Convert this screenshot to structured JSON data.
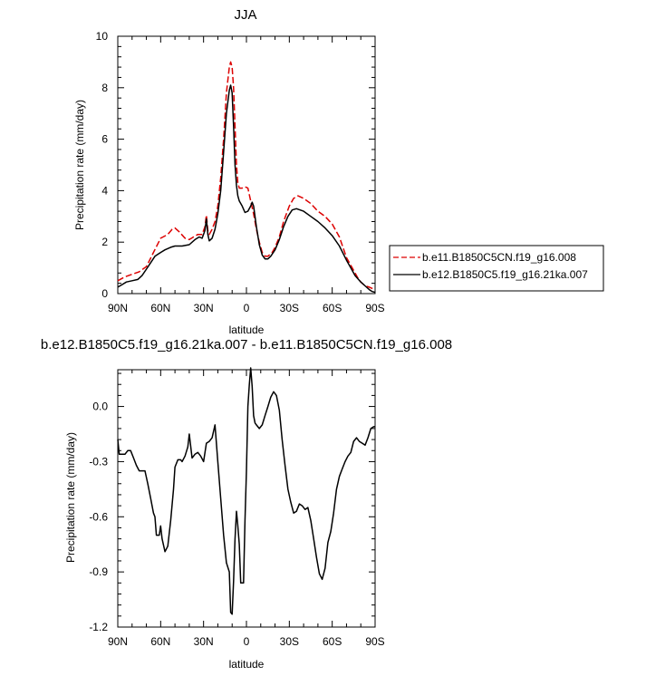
{
  "chart_data": [
    {
      "type": "line",
      "title": "JJA",
      "xlabel": "latitude",
      "ylabel": "Precipitation rate (mm/day)",
      "xlim": [
        90,
        -90
      ],
      "ylim": [
        0,
        10
      ],
      "xticks": [
        90,
        60,
        30,
        0,
        -30,
        -60,
        -90
      ],
      "xtick_labels": [
        "90N",
        "60N",
        "30N",
        "0",
        "30S",
        "60S",
        "90S"
      ],
      "yticks": [
        0,
        2,
        4,
        6,
        8,
        10
      ],
      "ytick_labels": [
        "0",
        "2",
        "4",
        "6",
        "8",
        "10"
      ],
      "legend_position": "right-middle",
      "series": [
        {
          "name": "b.e11.B1850C5CN.f19_g16.008",
          "color": "#dd0000",
          "dash": "dashed",
          "points": [
            [
              90,
              0.5
            ],
            [
              85,
              0.65
            ],
            [
              80,
              0.75
            ],
            [
              75,
              0.85
            ],
            [
              70,
              1.05
            ],
            [
              65,
              1.6
            ],
            [
              60,
              2.15
            ],
            [
              55,
              2.3
            ],
            [
              52,
              2.5
            ],
            [
              50,
              2.55
            ],
            [
              47,
              2.4
            ],
            [
              43,
              2.15
            ],
            [
              40,
              2.1
            ],
            [
              37,
              2.2
            ],
            [
              34,
              2.3
            ],
            [
              31,
              2.3
            ],
            [
              29,
              2.6
            ],
            [
              28,
              3.05
            ],
            [
              27,
              2.45
            ],
            [
              26,
              2.3
            ],
            [
              24,
              2.5
            ],
            [
              22,
              2.8
            ],
            [
              20,
              3.4
            ],
            [
              18,
              4.5
            ],
            [
              16,
              6.0
            ],
            [
              14,
              7.8
            ],
            [
              12,
              8.8
            ],
            [
              11,
              9.0
            ],
            [
              10,
              8.8
            ],
            [
              9,
              8.0
            ],
            [
              8,
              6.5
            ],
            [
              7,
              5.0
            ],
            [
              6,
              4.3
            ],
            [
              5,
              4.1
            ],
            [
              3,
              4.1
            ],
            [
              1,
              4.15
            ],
            [
              -1,
              4.1
            ],
            [
              -3,
              3.6
            ],
            [
              -5,
              3.1
            ],
            [
              -7,
              2.5
            ],
            [
              -9,
              2.0
            ],
            [
              -11,
              1.6
            ],
            [
              -13,
              1.45
            ],
            [
              -15,
              1.45
            ],
            [
              -18,
              1.6
            ],
            [
              -20,
              1.8
            ],
            [
              -23,
              2.2
            ],
            [
              -26,
              2.8
            ],
            [
              -30,
              3.4
            ],
            [
              -33,
              3.7
            ],
            [
              -36,
              3.8
            ],
            [
              -40,
              3.7
            ],
            [
              -45,
              3.5
            ],
            [
              -50,
              3.2
            ],
            [
              -55,
              3.0
            ],
            [
              -60,
              2.7
            ],
            [
              -65,
              2.2
            ],
            [
              -70,
              1.4
            ],
            [
              -75,
              0.9
            ],
            [
              -78,
              0.6
            ],
            [
              -80,
              0.45
            ],
            [
              -83,
              0.3
            ],
            [
              -86,
              0.25
            ],
            [
              -88,
              0.2
            ],
            [
              -90,
              0.15
            ]
          ]
        },
        {
          "name": "b.e12.B1850C5.f19_g16.21ka.007",
          "color": "#000000",
          "dash": "solid",
          "points": [
            [
              90,
              0.25
            ],
            [
              87,
              0.35
            ],
            [
              84,
              0.45
            ],
            [
              80,
              0.5
            ],
            [
              76,
              0.55
            ],
            [
              73,
              0.7
            ],
            [
              70,
              0.95
            ],
            [
              67,
              1.2
            ],
            [
              64,
              1.45
            ],
            [
              60,
              1.6
            ],
            [
              57,
              1.7
            ],
            [
              53,
              1.8
            ],
            [
              50,
              1.85
            ],
            [
              45,
              1.85
            ],
            [
              40,
              1.9
            ],
            [
              36,
              2.1
            ],
            [
              33,
              2.2
            ],
            [
              31,
              2.15
            ],
            [
              29,
              2.45
            ],
            [
              28,
              2.9
            ],
            [
              27,
              2.3
            ],
            [
              26,
              2.05
            ],
            [
              24,
              2.15
            ],
            [
              22,
              2.5
            ],
            [
              20,
              3.1
            ],
            [
              18,
              4.0
            ],
            [
              16,
              5.5
            ],
            [
              14,
              7.0
            ],
            [
              12,
              7.9
            ],
            [
              11,
              8.1
            ],
            [
              10,
              7.8
            ],
            [
              9,
              6.5
            ],
            [
              8,
              5.0
            ],
            [
              7,
              4.2
            ],
            [
              6,
              3.8
            ],
            [
              5,
              3.6
            ],
            [
              3,
              3.4
            ],
            [
              1,
              3.15
            ],
            [
              -1,
              3.2
            ],
            [
              -3,
              3.4
            ],
            [
              -4,
              3.55
            ],
            [
              -5,
              3.4
            ],
            [
              -7,
              2.6
            ],
            [
              -9,
              1.9
            ],
            [
              -11,
              1.5
            ],
            [
              -13,
              1.35
            ],
            [
              -15,
              1.35
            ],
            [
              -17,
              1.45
            ],
            [
              -20,
              1.7
            ],
            [
              -23,
              2.1
            ],
            [
              -26,
              2.6
            ],
            [
              -29,
              3.0
            ],
            [
              -32,
              3.25
            ],
            [
              -35,
              3.3
            ],
            [
              -40,
              3.2
            ],
            [
              -45,
              3.0
            ],
            [
              -50,
              2.8
            ],
            [
              -55,
              2.55
            ],
            [
              -60,
              2.25
            ],
            [
              -65,
              1.85
            ],
            [
              -70,
              1.3
            ],
            [
              -73,
              1.0
            ],
            [
              -76,
              0.7
            ],
            [
              -80,
              0.45
            ],
            [
              -83,
              0.3
            ],
            [
              -86,
              0.15
            ],
            [
              -88,
              0.08
            ],
            [
              -90,
              0.05
            ]
          ]
        }
      ]
    },
    {
      "type": "line",
      "title": "b.e12.B1850C5.f19_g16.21ka.007 - b.e11.B1850C5CN.f19_g16.008",
      "xlabel": "latitude",
      "ylabel": "Precipitation rate (mm/day)",
      "xlim": [
        90,
        -90
      ],
      "ylim": [
        -1.2,
        0.2
      ],
      "xticks": [
        90,
        60,
        30,
        0,
        -30,
        -60,
        -90
      ],
      "xtick_labels": [
        "90N",
        "60N",
        "30N",
        "0",
        "30S",
        "60S",
        "90S"
      ],
      "yticks": [
        0.0,
        -0.3,
        -0.6,
        -0.9,
        -1.2
      ],
      "ytick_labels": [
        "0.0",
        "-0.3",
        "-0.6",
        "-0.9",
        "-1.2"
      ],
      "series": [
        {
          "color": "#000000",
          "dash": "solid",
          "points": [
            [
              90,
              -0.18
            ],
            [
              89,
              -0.26
            ],
            [
              87,
              -0.26
            ],
            [
              85,
              -0.26
            ],
            [
              83,
              -0.24
            ],
            [
              81,
              -0.24
            ],
            [
              79,
              -0.28
            ],
            [
              77,
              -0.32
            ],
            [
              75,
              -0.35
            ],
            [
              73,
              -0.35
            ],
            [
              71,
              -0.35
            ],
            [
              69,
              -0.42
            ],
            [
              67,
              -0.5
            ],
            [
              65,
              -0.58
            ],
            [
              64,
              -0.6
            ],
            [
              63,
              -0.7
            ],
            [
              61,
              -0.7
            ],
            [
              60,
              -0.65
            ],
            [
              59,
              -0.72
            ],
            [
              57,
              -0.79
            ],
            [
              55,
              -0.76
            ],
            [
              53,
              -0.62
            ],
            [
              51,
              -0.45
            ],
            [
              50,
              -0.33
            ],
            [
              48,
              -0.29
            ],
            [
              46,
              -0.29
            ],
            [
              45,
              -0.3
            ],
            [
              43,
              -0.27
            ],
            [
              41,
              -0.22
            ],
            [
              40,
              -0.15
            ],
            [
              38,
              -0.28
            ],
            [
              36,
              -0.26
            ],
            [
              34,
              -0.25
            ],
            [
              32,
              -0.27
            ],
            [
              30,
              -0.3
            ],
            [
              28,
              -0.2
            ],
            [
              26,
              -0.19
            ],
            [
              24,
              -0.17
            ],
            [
              22,
              -0.1
            ],
            [
              20,
              -0.3
            ],
            [
              18,
              -0.5
            ],
            [
              16,
              -0.7
            ],
            [
              14,
              -0.85
            ],
            [
              12,
              -0.9
            ],
            [
              11,
              -1.12
            ],
            [
              10,
              -1.13
            ],
            [
              9,
              -0.95
            ],
            [
              8,
              -0.72
            ],
            [
              7,
              -0.57
            ],
            [
              6,
              -0.65
            ],
            [
              5,
              -0.75
            ],
            [
              4,
              -0.96
            ],
            [
              2,
              -0.96
            ],
            [
              1,
              -0.62
            ],
            [
              0,
              -0.35
            ],
            [
              -1,
              0.0
            ],
            [
              -2,
              0.12
            ],
            [
              -3,
              0.21
            ],
            [
              -4,
              0.11
            ],
            [
              -5,
              -0.05
            ],
            [
              -6,
              -0.09
            ],
            [
              -7,
              -0.1
            ],
            [
              -9,
              -0.12
            ],
            [
              -11,
              -0.1
            ],
            [
              -13,
              -0.05
            ],
            [
              -15,
              0.0
            ],
            [
              -17,
              0.05
            ],
            [
              -19,
              0.08
            ],
            [
              -21,
              0.06
            ],
            [
              -23,
              -0.02
            ],
            [
              -25,
              -0.18
            ],
            [
              -27,
              -0.32
            ],
            [
              -29,
              -0.45
            ],
            [
              -31,
              -0.52
            ],
            [
              -33,
              -0.58
            ],
            [
              -35,
              -0.57
            ],
            [
              -37,
              -0.53
            ],
            [
              -39,
              -0.54
            ],
            [
              -41,
              -0.56
            ],
            [
              -43,
              -0.55
            ],
            [
              -45,
              -0.62
            ],
            [
              -47,
              -0.72
            ],
            [
              -49,
              -0.82
            ],
            [
              -51,
              -0.91
            ],
            [
              -53,
              -0.94
            ],
            [
              -55,
              -0.88
            ],
            [
              -57,
              -0.74
            ],
            [
              -59,
              -0.68
            ],
            [
              -61,
              -0.58
            ],
            [
              -63,
              -0.45
            ],
            [
              -65,
              -0.38
            ],
            [
              -67,
              -0.34
            ],
            [
              -69,
              -0.3
            ],
            [
              -71,
              -0.27
            ],
            [
              -73,
              -0.25
            ],
            [
              -75,
              -0.19
            ],
            [
              -77,
              -0.17
            ],
            [
              -79,
              -0.19
            ],
            [
              -81,
              -0.2
            ],
            [
              -83,
              -0.21
            ],
            [
              -85,
              -0.17
            ],
            [
              -87,
              -0.12
            ],
            [
              -89,
              -0.11
            ],
            [
              -90,
              -0.11
            ]
          ]
        }
      ]
    }
  ]
}
